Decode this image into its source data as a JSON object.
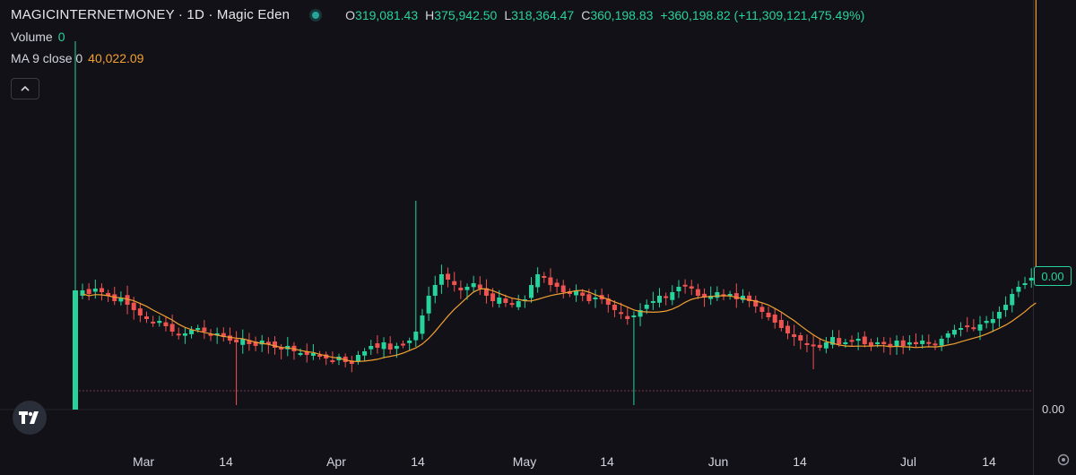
{
  "legend": {
    "symbol": "MAGICINTERNETMONEY · 1D · Magic Eden",
    "status_color": "#26a69a",
    "ohlc": [
      {
        "key": "O",
        "value": "319,081.43"
      },
      {
        "key": "H",
        "value": "375,942.50"
      },
      {
        "key": "L",
        "value": "318,364.47"
      },
      {
        "key": "C",
        "value": "360,198.83"
      }
    ],
    "change": "+360,198.82 (+11,309,121,475.49%)",
    "volume_label": "Volume",
    "volume_value": "0",
    "ma_label": "MA 9 close 0",
    "ma_value": "40,022.09"
  },
  "price_scale": {
    "last_price": "0.00",
    "zero_label": "0.00"
  },
  "colors": {
    "background": "#131118",
    "up": "#26d39a",
    "down": "#ef5350",
    "ma": "#f0a030"
  },
  "icons": {
    "collapse": "chevron-up-icon",
    "logo": "tradingview-logo",
    "corner": "settings-icon"
  },
  "chart_data": {
    "type": "candlestick",
    "x_tick_labels": [
      "Mar",
      "14",
      "Apr",
      "14",
      "May",
      "14",
      "Jun",
      "14",
      "Jul",
      "14"
    ],
    "y_tick_labels": [
      "0.00"
    ],
    "series": [
      {
        "name": "MAGICINTERNETMONEY",
        "type": "candlestick",
        "close_profile": [
          324,
          328,
          322,
          326,
          330,
          336,
          332,
          340,
          346,
          352,
          356,
          360,
          358,
          364,
          370,
          374,
          372,
          368,
          366,
          370,
          374,
          372,
          376,
          380,
          382,
          378,
          384,
          386,
          380,
          384,
          388,
          390,
          386,
          392,
          394,
          396,
          394,
          398,
          400,
          402,
          398,
          404,
          406,
          396,
          392,
          386,
          388,
          382,
          390,
          386,
          384,
          380,
          370,
          352,
          330,
          318,
          306,
          312,
          318,
          324,
          320,
          316,
          322,
          330,
          336,
          332,
          338,
          340,
          336,
          334,
          318,
          306,
          310,
          318,
          320,
          326,
          328,
          324,
          330,
          336,
          332,
          334,
          340,
          346,
          350,
          356,
          352,
          346,
          340,
          336,
          330,
          332,
          326,
          320,
          318,
          322,
          330,
          332,
          330,
          326,
          330,
          328,
          334,
          330,
          336,
          342,
          348,
          354,
          360,
          366,
          372,
          376,
          380,
          384,
          386,
          388,
          382,
          376,
          384,
          382,
          380,
          378,
          384,
          386,
          382,
          384,
          386,
          380,
          386,
          382,
          384,
          380,
          382,
          384,
          378,
          372,
          368,
          366,
          364,
          366,
          362,
          358,
          356,
          348,
          340,
          328,
          320,
          316,
          310
        ]
      },
      {
        "name": "MA 9 close",
        "type": "line",
        "color": "#f0a030"
      },
      {
        "name": "Volume",
        "type": "bar"
      }
    ]
  }
}
